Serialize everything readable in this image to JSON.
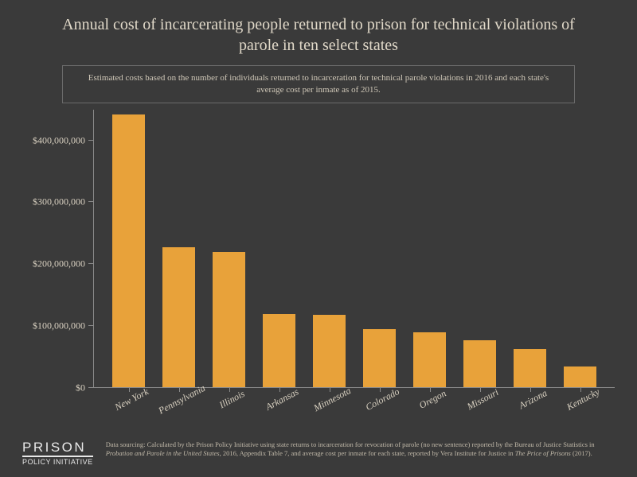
{
  "title": "Annual cost of incarcerating people returned to prison for technical violations of parole in ten select states",
  "subtitle": "Estimated costs based on the number of individuals returned to incarceration for technical parole violations in 2016 and each state's average cost per inmate as of 2015.",
  "chart": {
    "type": "bar",
    "background_color": "#3a3a3a",
    "bar_color": "#e8a23a",
    "axis_color": "#8a8a8a",
    "text_color": "#d8d0c0",
    "title_color": "#e0d8c8",
    "ylim": [
      0,
      450000000
    ],
    "yticks": [
      0,
      100000000,
      200000000,
      300000000,
      400000000
    ],
    "ytick_labels": [
      "$0",
      "$100,000,000",
      "$200,000,000",
      "$300,000,000",
      "$400,000,000"
    ],
    "bar_width": 0.75,
    "categories": [
      "New York",
      "Pennsylvania",
      "Illinois",
      "Arkansas",
      "Minnesota",
      "Colorado",
      "Oregon",
      "Missouri",
      "Arizona",
      "Kentucky"
    ],
    "values": [
      442000000,
      228000000,
      220000000,
      120000000,
      118000000,
      95000000,
      90000000,
      77000000,
      63000000,
      35000000
    ],
    "title_fontsize": 20,
    "subtitle_fontsize": 11,
    "axis_label_fontsize": 12
  },
  "logo": {
    "top": "PRISON",
    "bottom": "POLICY INITIATIVE"
  },
  "source_prefix": "Data sourcing: Calculated by the Prison Policy Initiative using state returns to incarceration for revocation of parole (no new sentence) reported by the Bureau of Justice Statistics in ",
  "source_em1": "Probation and Parole in the United States",
  "source_mid": ", 2016, Appendix Table 7, and average cost per inmate for each state, reported by Vera Institute for Justice in ",
  "source_em2": "The Price of Prisons",
  "source_suffix": " (2017)."
}
